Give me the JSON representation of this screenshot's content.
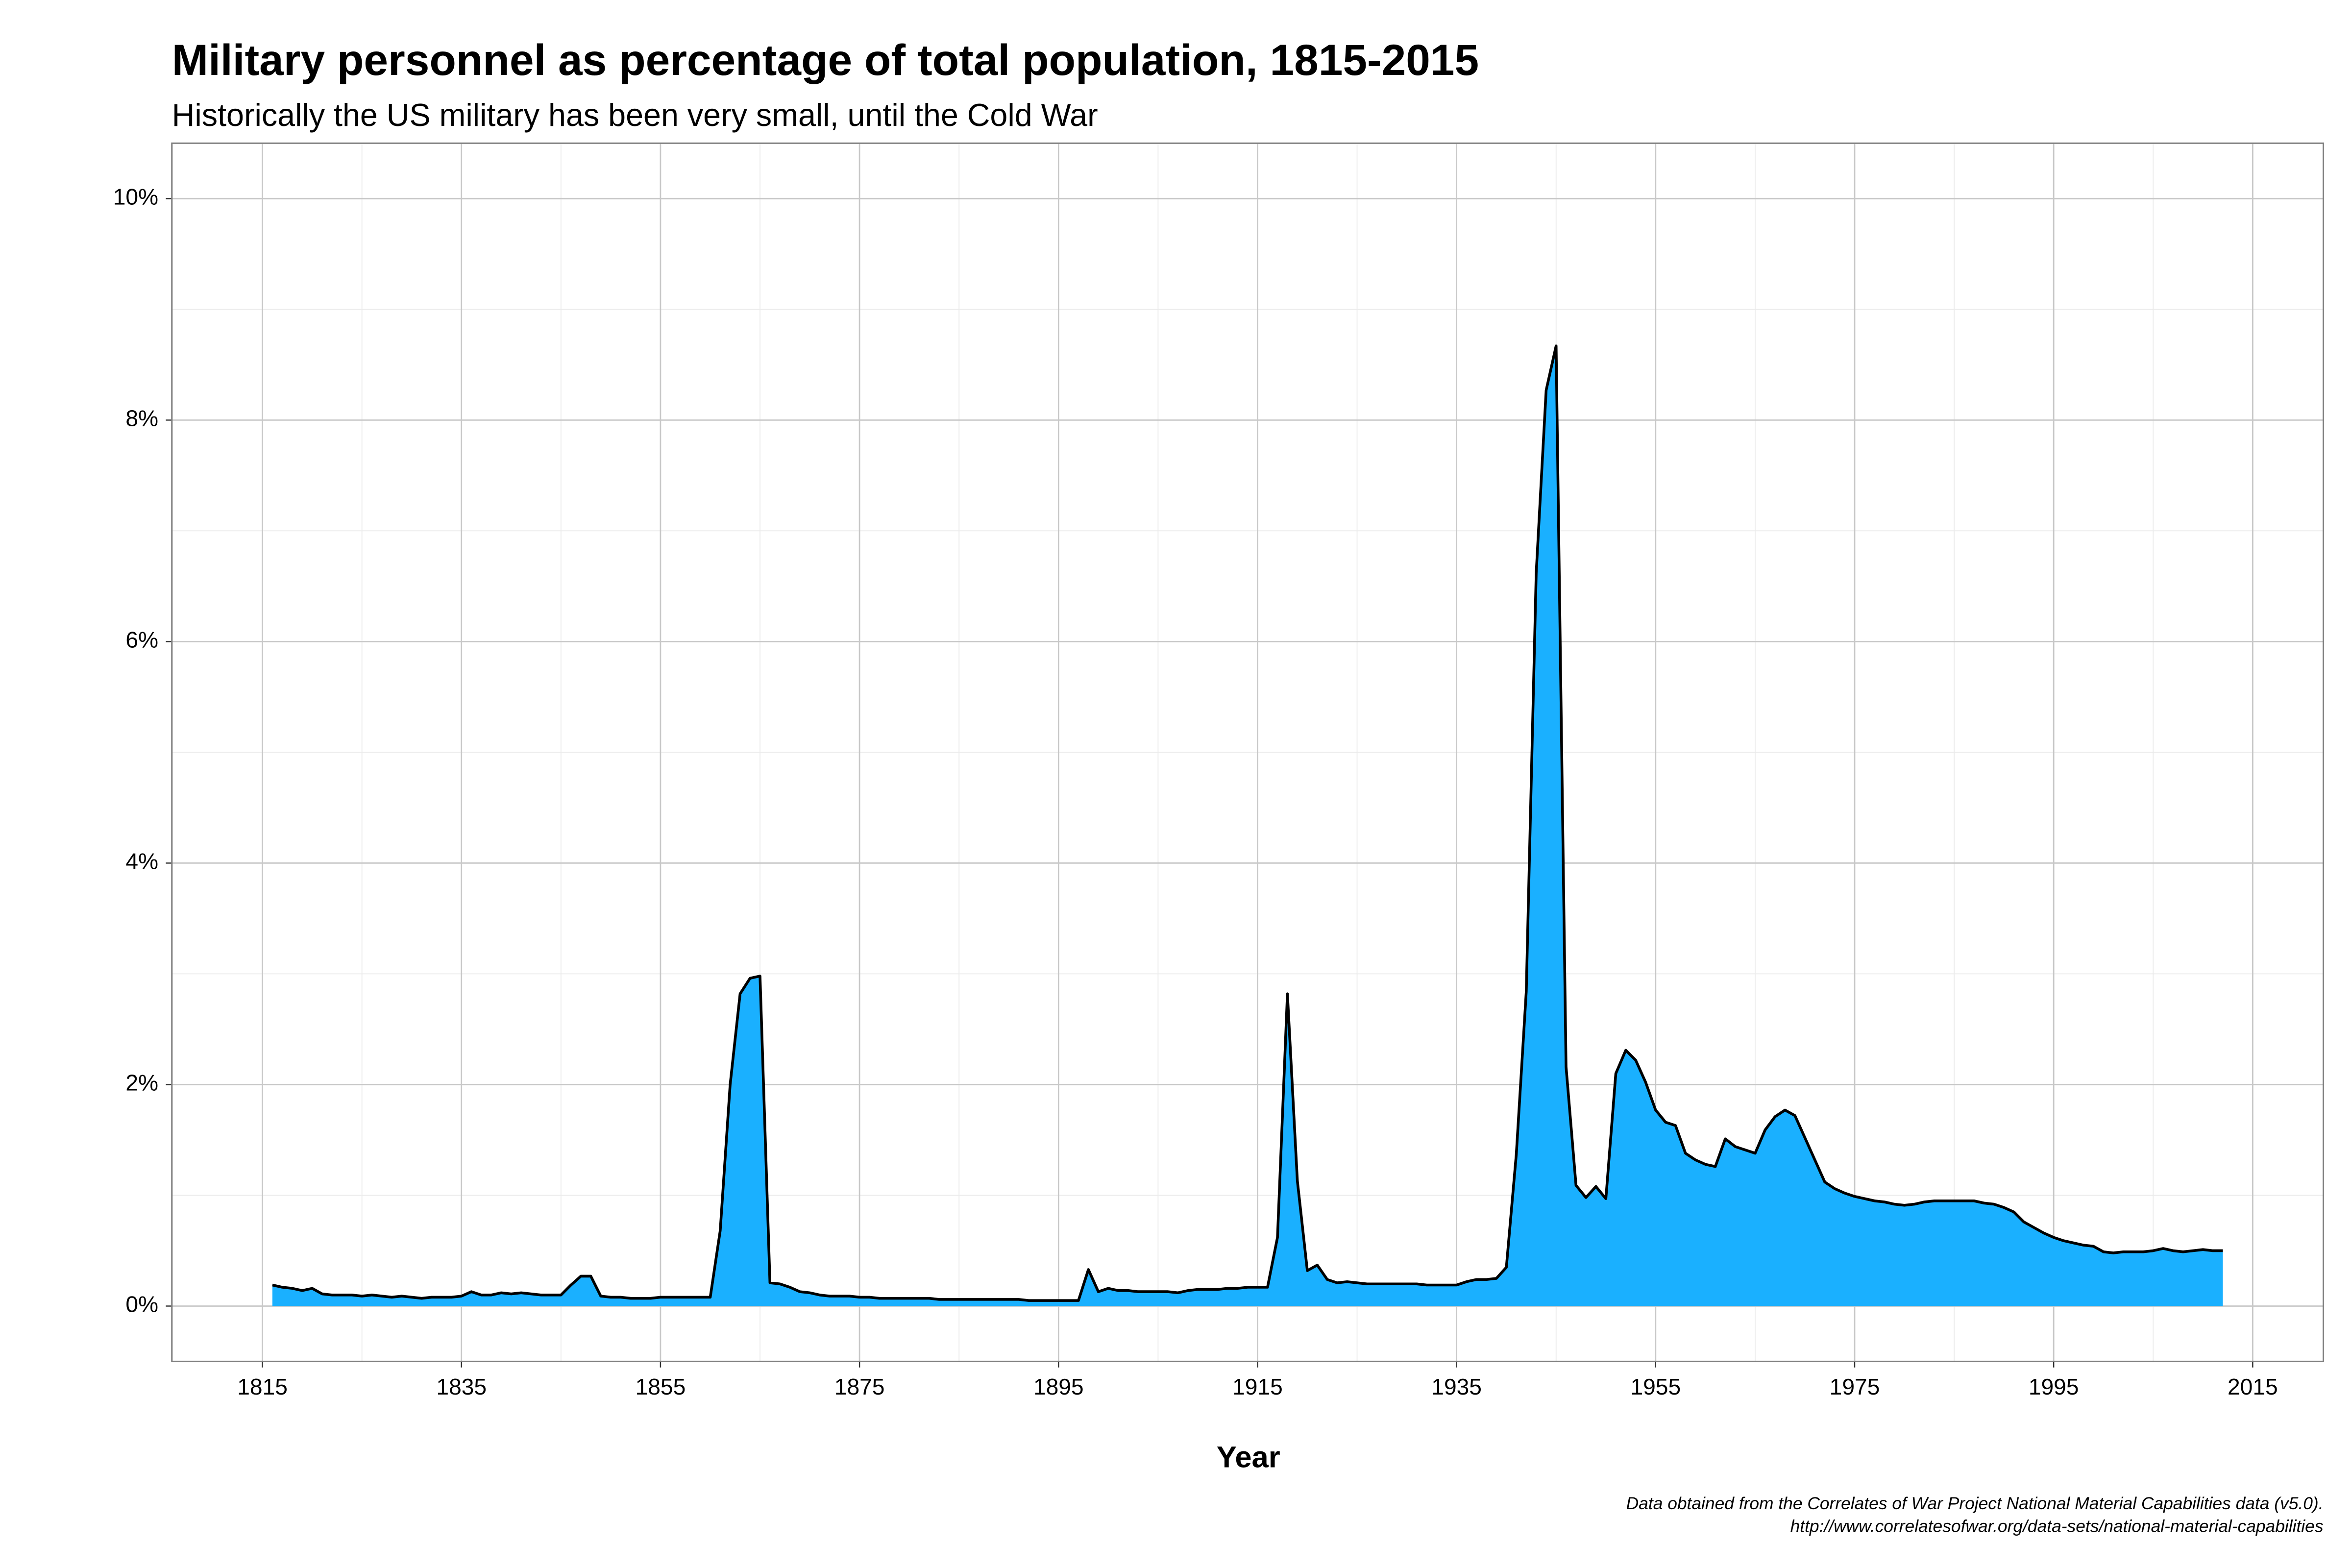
{
  "chart_data": {
    "type": "area",
    "title": "Military personnel as percentage of total population, 1815-2015",
    "subtitle": "Historically the US military has been very small, until the Cold War",
    "x_label": "Year",
    "caption": [
      "Data obtained from the Correlates of War Project National Material Capabilities data (v5.0).",
      "http://www.correlatesofwar.org/data-sets/national-material-capabilities"
    ],
    "color": "#1ab0ff",
    "line_color": "#000000",
    "grid": true,
    "xlim": [
      1805.9,
      2022.1
    ],
    "xticks": [
      1815,
      1835,
      1855,
      1875,
      1895,
      1915,
      1935,
      1955,
      1975,
      1995,
      2015
    ],
    "ylim": [
      -0.5,
      10.5
    ],
    "yticks": [
      {
        "value": 0,
        "label": "0%"
      },
      {
        "value": 2,
        "label": "2%"
      },
      {
        "value": 4,
        "label": "4%"
      },
      {
        "value": 6,
        "label": "6%"
      },
      {
        "value": 8,
        "label": "8%"
      },
      {
        "value": 10,
        "label": "10%"
      }
    ],
    "x": [
      1816,
      1817,
      1818,
      1819,
      1820,
      1821,
      1822,
      1823,
      1824,
      1825,
      1826,
      1827,
      1828,
      1829,
      1830,
      1831,
      1832,
      1833,
      1834,
      1835,
      1836,
      1837,
      1838,
      1839,
      1840,
      1841,
      1842,
      1843,
      1844,
      1845,
      1846,
      1847,
      1848,
      1849,
      1850,
      1851,
      1852,
      1853,
      1854,
      1855,
      1856,
      1857,
      1858,
      1859,
      1860,
      1861,
      1862,
      1863,
      1864,
      1865,
      1866,
      1867,
      1868,
      1869,
      1870,
      1871,
      1872,
      1873,
      1874,
      1875,
      1876,
      1877,
      1878,
      1879,
      1880,
      1881,
      1882,
      1883,
      1884,
      1885,
      1886,
      1887,
      1888,
      1889,
      1890,
      1891,
      1892,
      1893,
      1894,
      1895,
      1896,
      1897,
      1898,
      1899,
      1900,
      1901,
      1902,
      1903,
      1904,
      1905,
      1906,
      1907,
      1908,
      1909,
      1910,
      1911,
      1912,
      1913,
      1914,
      1915,
      1916,
      1917,
      1918,
      1919,
      1920,
      1921,
      1922,
      1923,
      1924,
      1925,
      1926,
      1927,
      1928,
      1929,
      1930,
      1931,
      1932,
      1933,
      1934,
      1935,
      1936,
      1937,
      1938,
      1939,
      1940,
      1941,
      1942,
      1943,
      1944,
      1945,
      1946,
      1947,
      1948,
      1949,
      1950,
      1951,
      1952,
      1953,
      1954,
      1955,
      1956,
      1957,
      1958,
      1959,
      1960,
      1961,
      1962,
      1963,
      1964,
      1965,
      1966,
      1967,
      1968,
      1969,
      1970,
      1971,
      1972,
      1973,
      1974,
      1975,
      1976,
      1977,
      1978,
      1979,
      1980,
      1981,
      1982,
      1983,
      1984,
      1985,
      1986,
      1987,
      1988,
      1989,
      1990,
      1991,
      1992,
      1993,
      1994,
      1995,
      1996,
      1997,
      1998,
      1999,
      2000,
      2001,
      2002,
      2003,
      2004,
      2005,
      2006,
      2007,
      2008,
      2009,
      2010,
      2011,
      2012
    ],
    "values": [
      0.19,
      0.17,
      0.16,
      0.14,
      0.16,
      0.11,
      0.1,
      0.1,
      0.1,
      0.09,
      0.1,
      0.09,
      0.08,
      0.09,
      0.08,
      0.07,
      0.08,
      0.08,
      0.08,
      0.09,
      0.13,
      0.1,
      0.1,
      0.12,
      0.11,
      0.12,
      0.11,
      0.1,
      0.1,
      0.1,
      0.19,
      0.27,
      0.27,
      0.09,
      0.08,
      0.08,
      0.07,
      0.07,
      0.07,
      0.08,
      0.08,
      0.08,
      0.08,
      0.08,
      0.08,
      0.68,
      2.0,
      2.82,
      2.96,
      2.98,
      0.21,
      0.2,
      0.17,
      0.13,
      0.12,
      0.1,
      0.09,
      0.09,
      0.09,
      0.08,
      0.08,
      0.07,
      0.07,
      0.07,
      0.07,
      0.07,
      0.07,
      0.06,
      0.06,
      0.06,
      0.06,
      0.06,
      0.06,
      0.06,
      0.06,
      0.06,
      0.05,
      0.05,
      0.05,
      0.05,
      0.05,
      0.05,
      0.33,
      0.13,
      0.16,
      0.14,
      0.14,
      0.13,
      0.13,
      0.13,
      0.13,
      0.12,
      0.14,
      0.15,
      0.15,
      0.15,
      0.16,
      0.16,
      0.17,
      0.17,
      0.17,
      0.62,
      2.82,
      1.13,
      0.32,
      0.37,
      0.24,
      0.21,
      0.22,
      0.21,
      0.2,
      0.2,
      0.2,
      0.2,
      0.2,
      0.2,
      0.19,
      0.19,
      0.19,
      0.19,
      0.22,
      0.24,
      0.24,
      0.25,
      0.35,
      1.37,
      2.84,
      6.62,
      8.27,
      8.67,
      2.16,
      1.09,
      0.98,
      1.08,
      0.97,
      2.1,
      2.31,
      2.22,
      2.02,
      1.77,
      1.66,
      1.63,
      1.38,
      1.32,
      1.28,
      1.26,
      1.51,
      1.44,
      1.41,
      1.38,
      1.59,
      1.71,
      1.77,
      1.72,
      1.52,
      1.32,
      1.12,
      1.06,
      1.02,
      0.99,
      0.97,
      0.95,
      0.94,
      0.92,
      0.91,
      0.92,
      0.94,
      0.95,
      0.95,
      0.95,
      0.95,
      0.95,
      0.93,
      0.92,
      0.89,
      0.85,
      0.76,
      0.71,
      0.66,
      0.62,
      0.59,
      0.57,
      0.55,
      0.54,
      0.49,
      0.48,
      0.49,
      0.49,
      0.49,
      0.5,
      0.52,
      0.5,
      0.49,
      0.5,
      0.51,
      0.5,
      0.5
    ]
  }
}
